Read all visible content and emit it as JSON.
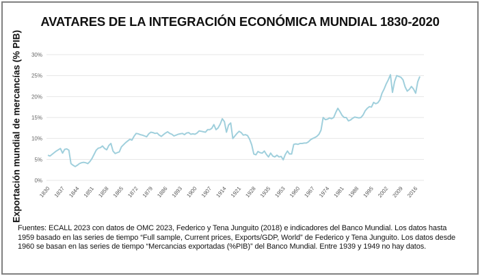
{
  "chart_data": {
    "type": "line",
    "title": "AVATARES DE LA INTEGRACIÓN ECONÓMICA MUNDIAL 1830-2020",
    "xlabel": "",
    "ylabel": "Exportación mundial de mercancías (% PIB)",
    "ylim": [
      0,
      30
    ],
    "yticks": [
      "0%",
      "5%",
      "10%",
      "15%",
      "20%",
      "25%",
      "30%"
    ],
    "ytick_values": [
      0,
      5,
      10,
      15,
      20,
      25,
      30
    ],
    "grid": true,
    "line_color": "#9fcfdc",
    "x_categories_note": "Años 1830-1938 y 1950-2018; sin datos 1939-1949",
    "xtick_labels": [
      "1830",
      "1837",
      "1844",
      "1851",
      "1858",
      "1865",
      "1872",
      "1879",
      "1886",
      "1893",
      "1900",
      "1907",
      "1914",
      "1921",
      "1928",
      "1935",
      "1953",
      "1960",
      "1967",
      "1974",
      "1981",
      "1988",
      "1995",
      "2002",
      "2009",
      "2016"
    ],
    "series": [
      {
        "name": "Exportación mundial de mercancías (% PIB)",
        "segments": [
          {
            "start_year": 1830,
            "values": [
              6,
              5.8,
              6.2,
              6.6,
              7,
              7.3,
              7.6,
              6.5,
              7.4,
              7.5,
              7.2,
              4,
              3.6,
              3.3,
              3.6,
              4,
              4.2,
              4.3,
              4.2,
              4,
              4.5,
              5.2,
              6.2,
              7.2,
              7.7,
              7.8,
              8.2,
              7.6,
              7.3,
              8.3,
              8.8,
              7,
              6.4,
              6.6,
              6.8,
              8,
              8.5,
              9,
              9.4,
              9.8,
              9.6,
              10.5,
              11.2,
              11.1,
              10.9,
              10.8,
              10.6,
              10.4,
              11.1,
              11.5,
              11.4,
              11.2,
              11.3,
              10.8,
              10.5,
              10.9,
              11.3,
              11.6,
              11.2,
              11,
              10.6,
              10.8,
              11,
              11.1,
              11.2,
              10.9,
              11.3,
              11.4,
              11,
              11.1,
              11,
              11.3,
              11.8,
              11.7,
              11.6,
              11.5,
              12.1,
              12.1,
              12.4,
              13.3,
              12.1,
              12.5,
              13.4,
              14.7,
              14,
              11.5,
              13.2,
              13.7,
              10,
              10.6,
              11.2,
              11.7,
              11.4,
              10.8,
              10.9,
              10.7,
              9.8,
              8.5,
              6.3,
              6.1,
              6.9,
              6.6,
              6.5,
              7,
              6.2,
              5.6,
              6.5,
              5.8,
              5.6
            ]
          },
          {
            "start_year": 1950,
            "values": [
              6,
              5.6,
              5.7,
              4.9,
              6.2,
              7,
              6.3,
              6.3,
              8.6,
              8.7,
              8.6,
              8.8,
              8.8,
              8.9,
              8.9,
              9.2,
              9.7,
              10,
              10.2,
              10.5,
              11,
              12,
              15,
              14.5,
              14.6,
              14.9,
              14.7,
              15,
              16.2,
              17.2,
              16.4,
              15.5,
              15,
              15,
              14.2,
              14.4,
              14.8,
              15.1,
              15,
              14.9,
              15,
              15.6,
              16.6,
              17.2,
              17.6,
              17.5,
              18.6,
              18.3,
              18.5,
              19.2,
              20.8,
              21.8,
              23,
              24,
              25.2,
              21,
              23.6,
              25,
              24.8,
              24.6,
              24,
              22.3,
              21.3,
              21.7,
              22.4,
              21.8,
              20.8,
              23.5,
              24.8
            ]
          }
        ]
      }
    ]
  },
  "footer": {
    "text": "Fuentes: ECALL 2023 con datos de OMC 2023, Federico y Tena Junguito (2018) e indicadores del Banco Mundial. Los datos hasta 1959 basado en las series de tiempo “Full sample, Current prices, Exports/GDP, World” de Federico y Tena Junguito. Los datos desde 1960 se basan en las series de tiempo “Mercancias exportadas (%PIB)” del Banco Mundial. Entre 1939 y 1949 no hay datos."
  }
}
